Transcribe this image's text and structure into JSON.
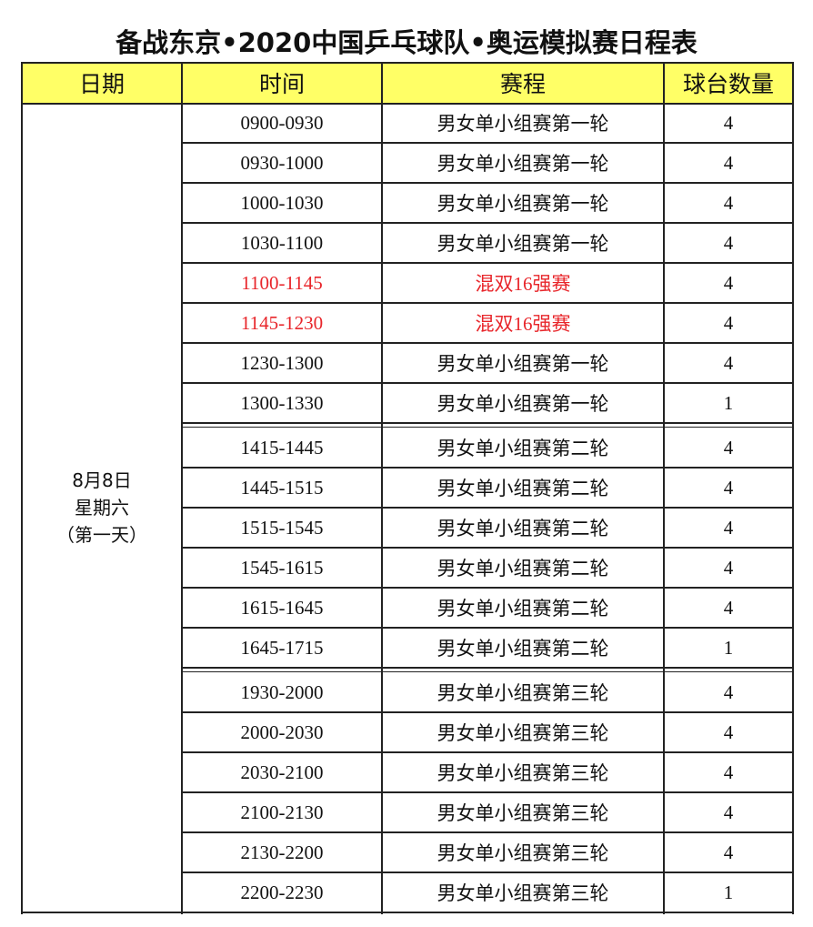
{
  "title": "备战东京•2020中国乒乓球队•奥运模拟赛日程表",
  "table": {
    "header": [
      "日期",
      "时间",
      "赛程",
      "球台数量"
    ],
    "date": [
      "8月8日",
      "星期六",
      "（第一天）"
    ],
    "highlight_color": "#e8262b",
    "highlight_rows": [
      4,
      5
    ],
    "groups": [
      [
        [
          "0900-0930",
          "男女单小组赛第一轮",
          4
        ],
        [
          "0930-1000",
          "男女单小组赛第一轮",
          4
        ],
        [
          "1000-1030",
          "男女单小组赛第一轮",
          4
        ],
        [
          "1030-1100",
          "男女单小组赛第一轮",
          4
        ],
        [
          "1100-1145",
          "混双16强赛",
          4
        ],
        [
          "1145-1230",
          "混双16强赛",
          4
        ],
        [
          "1230-1300",
          "男女单小组赛第一轮",
          4
        ],
        [
          "1300-1330",
          "男女单小组赛第一轮",
          1
        ]
      ],
      [
        [
          "1415-1445",
          "男女单小组赛第二轮",
          4
        ],
        [
          "1445-1515",
          "男女单小组赛第二轮",
          4
        ],
        [
          "1515-1545",
          "男女单小组赛第二轮",
          4
        ],
        [
          "1545-1615",
          "男女单小组赛第二轮",
          4
        ],
        [
          "1615-1645",
          "男女单小组赛第二轮",
          4
        ],
        [
          "1645-1715",
          "男女单小组赛第二轮",
          1
        ]
      ],
      [
        [
          "1930-2000",
          "男女单小组赛第三轮",
          4
        ],
        [
          "2000-2030",
          "男女单小组赛第三轮",
          4
        ],
        [
          "2030-2100",
          "男女单小组赛第三轮",
          4
        ],
        [
          "2100-2130",
          "男女单小组赛第三轮",
          4
        ],
        [
          "2130-2200",
          "男女单小组赛第三轮",
          4
        ],
        [
          "2200-2230",
          "男女单小组赛第三轮",
          1
        ]
      ]
    ]
  }
}
